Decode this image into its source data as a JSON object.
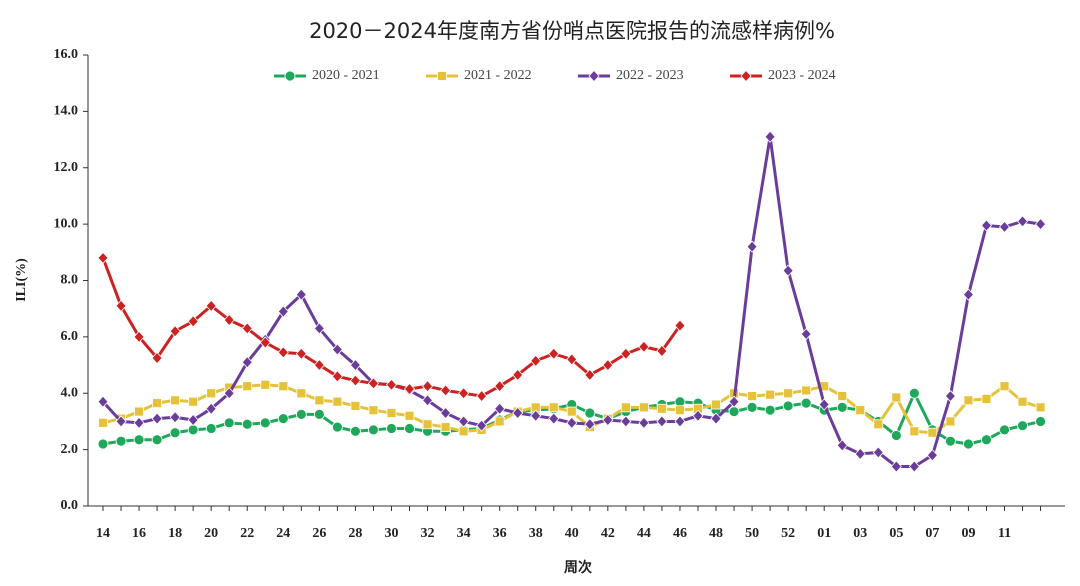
{
  "chart_data": {
    "type": "line",
    "title": "2020－2024年度南方省份哨点医院报告的流感样病例%",
    "x_label": "周次",
    "y_label": "ILI(%)",
    "categories": [
      "14",
      null,
      "16",
      null,
      "18",
      null,
      "20",
      null,
      "22",
      null,
      "24",
      null,
      "26",
      null,
      "28",
      null,
      "30",
      null,
      "32",
      null,
      "34",
      null,
      "36",
      null,
      "38",
      null,
      "40",
      null,
      "42",
      null,
      "44",
      null,
      "46",
      null,
      "48",
      null,
      "50",
      null,
      "52",
      null,
      "01",
      null,
      "03",
      null,
      "05",
      null,
      "07",
      null,
      "09",
      null,
      "11",
      null,
      null
    ],
    "ylim": [
      0,
      16
    ],
    "yticks": [
      {
        "value": 0,
        "label": "0.0"
      },
      {
        "value": 2,
        "label": "2.0"
      },
      {
        "value": 4,
        "label": "4.0"
      },
      {
        "value": 6,
        "label": "6.0"
      },
      {
        "value": 8,
        "label": "8.0"
      },
      {
        "value": 10,
        "label": "10.0"
      },
      {
        "value": 12,
        "label": "12.0"
      },
      {
        "value": 14,
        "label": "14.0"
      },
      {
        "value": 16,
        "label": "16.0"
      }
    ],
    "legend": "top",
    "series": [
      {
        "name": "2020 - 2021",
        "color": "#1fa85c",
        "marker": "circle",
        "values": [
          2.2,
          2.3,
          2.35,
          2.35,
          2.6,
          2.7,
          2.75,
          2.95,
          2.9,
          2.95,
          3.1,
          3.25,
          3.25,
          2.8,
          2.65,
          2.7,
          2.75,
          2.75,
          2.65,
          2.65,
          2.7,
          2.75,
          3.05,
          3.35,
          3.4,
          3.45,
          3.6,
          3.3,
          3.1,
          3.35,
          3.5,
          3.6,
          3.7,
          3.65,
          3.4,
          3.35,
          3.5,
          3.4,
          3.55,
          3.65,
          3.4,
          3.5,
          3.4,
          3.0,
          2.5,
          4.0,
          2.7,
          2.3,
          2.2,
          2.35,
          2.7,
          2.85,
          3.0
        ]
      },
      {
        "name": "2021 - 2022",
        "color": "#e6c23a",
        "marker": "square",
        "values": [
          2.95,
          3.1,
          3.35,
          3.65,
          3.75,
          3.7,
          4.0,
          4.2,
          4.25,
          4.3,
          4.25,
          4.0,
          3.75,
          3.7,
          3.55,
          3.4,
          3.3,
          3.2,
          2.9,
          2.8,
          2.65,
          2.7,
          3.0,
          3.35,
          3.5,
          3.5,
          3.35,
          2.8,
          3.1,
          3.5,
          3.5,
          3.45,
          3.4,
          3.45,
          3.6,
          4.0,
          3.9,
          3.95,
          4.0,
          4.1,
          4.25,
          3.9,
          3.4,
          2.9,
          3.85,
          2.65,
          2.6,
          3.0,
          3.75,
          3.8,
          4.25,
          3.7,
          3.5
        ]
      },
      {
        "name": "2022 - 2023",
        "color": "#6b3d9a",
        "marker": "diamond",
        "values": [
          3.7,
          3.0,
          2.95,
          3.1,
          3.15,
          3.05,
          3.45,
          4.0,
          5.1,
          5.9,
          6.9,
          7.5,
          6.3,
          5.55,
          5.0,
          4.35,
          4.3,
          4.1,
          3.75,
          3.3,
          3.0,
          2.85,
          3.45,
          3.3,
          3.2,
          3.1,
          2.95,
          2.9,
          3.05,
          3.0,
          2.95,
          3.0,
          3.0,
          3.2,
          3.1,
          3.7,
          9.2,
          13.1,
          8.35,
          6.1,
          3.6,
          2.15,
          1.85,
          1.9,
          1.4,
          1.4,
          1.8,
          3.9,
          7.5,
          9.95,
          9.9,
          10.1,
          10.0
        ]
      },
      {
        "name": "2023 - 2024",
        "color": "#cc2222",
        "marker": "diamond",
        "values": [
          8.8,
          7.1,
          6.0,
          5.25,
          6.2,
          6.55,
          7.1,
          6.6,
          6.3,
          5.8,
          5.45,
          5.4,
          5.0,
          4.6,
          4.45,
          4.35,
          4.3,
          4.15,
          4.25,
          4.1,
          4.0,
          3.9,
          4.25,
          4.65,
          5.15,
          5.4,
          5.2,
          4.65,
          5.0,
          5.4,
          5.65,
          5.5,
          6.4,
          null,
          null,
          null,
          null,
          null,
          null,
          null,
          null,
          null,
          null,
          null,
          null,
          null,
          null,
          null,
          null,
          null,
          null,
          null,
          null
        ]
      }
    ]
  }
}
